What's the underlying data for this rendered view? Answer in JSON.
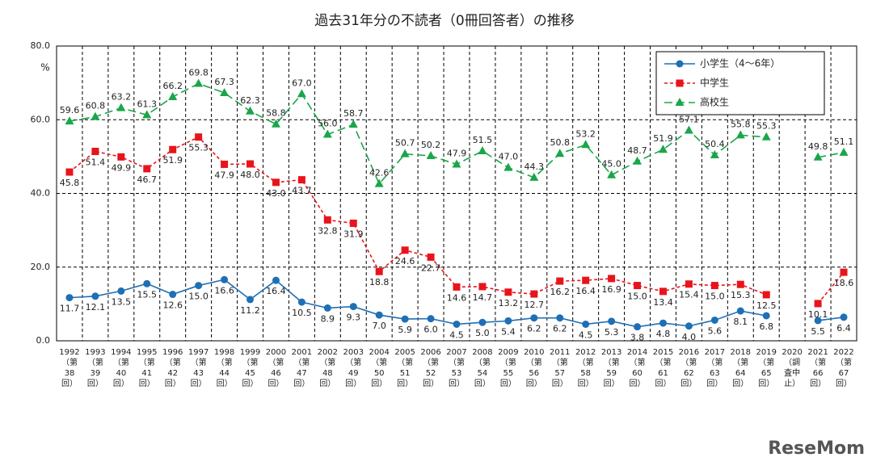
{
  "chart_data": {
    "type": "line",
    "title": "過去31年分の不読者（0冊回答者）の推移",
    "y_unit": "%",
    "categories": [
      "1992\n（第\n38\n回）",
      "1993\n（第\n39\n回）",
      "1994\n（第\n40\n回）",
      "1995\n（第\n41\n回）",
      "1996\n（第\n42\n回）",
      "1997\n（第\n43\n回）",
      "1998\n（第\n44\n回）",
      "1999\n（第\n45\n回）",
      "2000\n（第\n46\n回）",
      "2001\n（第\n47\n回）",
      "2002\n（第\n48\n回）",
      "2003\n（第\n49\n回）",
      "2004\n（第\n50\n回）",
      "2005\n（第\n51\n回）",
      "2006\n（第\n52\n回）",
      "2007\n（第\n53\n回）",
      "2008\n（第\n54\n回）",
      "2009\n（第\n55\n回）",
      "2010\n（第\n56\n回）",
      "2011\n（第\n57\n回）",
      "2012\n（第\n58\n回）",
      "2013\n（第\n59\n回）",
      "2014\n（第\n60\n回）",
      "2015\n（第\n61\n回）",
      "2016\n（第\n62\n回）",
      "2017\n（第\n63\n回）",
      "2018\n（第\n64\n回）",
      "2019\n（第\n65\n回）",
      "2020\n（調\n査中\n止）",
      "2021\n（第\n66\n回）",
      "2022\n（第\n67\n回）"
    ],
    "series": [
      {
        "name": "小学生（4～6年）",
        "color": "#1f6fb5",
        "marker": "circle",
        "dash": "none",
        "label_side": "below",
        "values": [
          11.7,
          12.1,
          13.5,
          15.5,
          12.6,
          15.0,
          16.6,
          11.2,
          16.4,
          10.5,
          8.9,
          9.3,
          7.0,
          5.9,
          6.0,
          4.5,
          5.0,
          5.4,
          6.2,
          6.2,
          4.5,
          5.3,
          3.8,
          4.8,
          4.0,
          5.6,
          8.1,
          6.8,
          null,
          5.5,
          6.4
        ],
        "value_labels": [
          "11.7",
          "12.1",
          "13.5",
          "15.5",
          "12.6",
          "15.0",
          "16.6",
          "11.2",
          "16.4",
          "10.5",
          "8.9",
          "9.3",
          "7.0",
          "5.9",
          "6.0",
          "4.5",
          "5.0",
          "5.4",
          "6.2",
          "6.2",
          "4.5",
          "5.3",
          "3.8",
          "4.8",
          "4.0",
          "5.6",
          "8.1",
          "6.8",
          null,
          "5.5",
          "6.4"
        ]
      },
      {
        "name": "中学生",
        "color": "#e8141b",
        "marker": "square",
        "dash": "4 3",
        "label_side": "below",
        "values": [
          45.8,
          51.4,
          49.9,
          46.7,
          51.9,
          55.3,
          47.9,
          48.0,
          43.0,
          43.7,
          32.8,
          31.9,
          18.8,
          24.6,
          22.7,
          14.6,
          14.7,
          13.2,
          12.7,
          16.2,
          16.4,
          16.9,
          15.0,
          13.4,
          15.4,
          15.0,
          15.3,
          12.5,
          null,
          10.1,
          18.6
        ],
        "value_labels": [
          "45.8",
          "51.4",
          "49.9",
          "46.7",
          "51.9",
          "55.3",
          "47.9",
          "48.0",
          "43.0",
          "43.7",
          "32.8",
          "31.9",
          "18.8",
          "24.6",
          "22.7",
          "14.6",
          "14.7",
          "13.2",
          "12.7",
          "16.2",
          "16.4",
          "16.9",
          "15.0",
          "13.4",
          "15.4",
          "15.0",
          "15.3",
          "12.5",
          null,
          "10.1",
          "18.6"
        ]
      },
      {
        "name": "高校生",
        "color": "#1aa64a",
        "marker": "triangle",
        "dash": "10 5",
        "label_side": "above",
        "values": [
          59.6,
          60.8,
          63.2,
          61.3,
          66.2,
          69.8,
          67.3,
          62.3,
          58.8,
          67.0,
          56.0,
          58.7,
          42.6,
          50.7,
          50.2,
          47.9,
          51.5,
          47.0,
          44.3,
          50.8,
          53.2,
          45.0,
          48.7,
          51.9,
          57.1,
          50.4,
          55.8,
          55.3,
          null,
          49.8,
          51.1
        ],
        "value_labels": [
          "59.6",
          "60.8",
          "63.2",
          "61.3",
          "66.2",
          "69.8",
          "67.3",
          "62.3",
          "58.8",
          "67.0",
          "56.0",
          "58.7",
          "42.6",
          "50.7",
          "50.2",
          "47.9",
          "51.5",
          "47.0",
          "44.3",
          "50.8",
          "53.2",
          "45.0",
          "48.7",
          "51.9",
          "57.1",
          "50.4",
          "55.8",
          "55.3",
          null,
          "49.8",
          "51.1"
        ]
      }
    ],
    "ylim": [
      0,
      80
    ],
    "yticks": [
      {
        "value": 0,
        "label": "0.0"
      },
      {
        "value": 20,
        "label": "20.0"
      },
      {
        "value": 40,
        "label": "40.0"
      },
      {
        "value": 60,
        "label": "60.0"
      },
      {
        "value": 80,
        "label": "80.0"
      }
    ],
    "grid": true,
    "legend": "top-right"
  },
  "watermark": "ReseMom"
}
